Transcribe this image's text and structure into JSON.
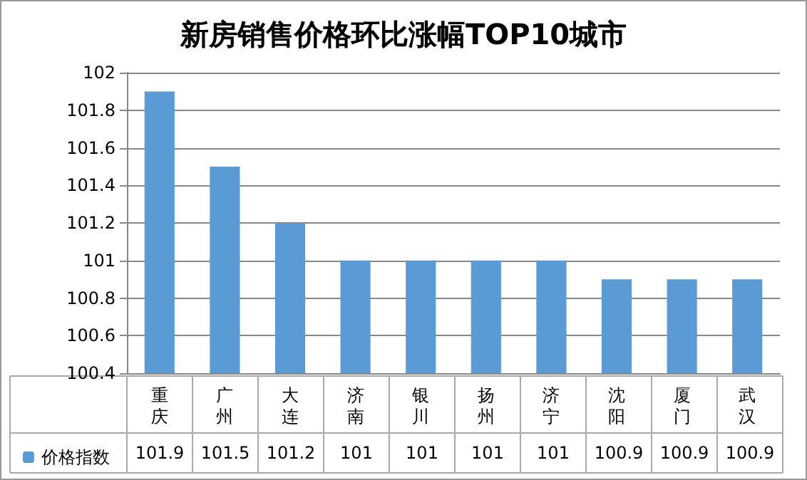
{
  "chart_data": {
    "type": "bar",
    "title": "新房销售价格环比涨幅TOP10城市",
    "categories": [
      "重庆",
      "广州",
      "大连",
      "济南",
      "银川",
      "扬州",
      "济宁",
      "沈阳",
      "厦门",
      "武汉"
    ],
    "series": [
      {
        "name": "价格指数",
        "color": "#5b9bd5",
        "values": [
          101.9,
          101.5,
          101.2,
          101,
          101,
          101,
          101,
          100.9,
          100.9,
          100.9
        ]
      }
    ],
    "ylim": [
      100.4,
      102
    ],
    "yticks": [
      100.4,
      100.6,
      100.8,
      101,
      101.2,
      101.4,
      101.6,
      101.8,
      102
    ],
    "grid": "y",
    "legend": "bottom left",
    "data_labels": true
  }
}
